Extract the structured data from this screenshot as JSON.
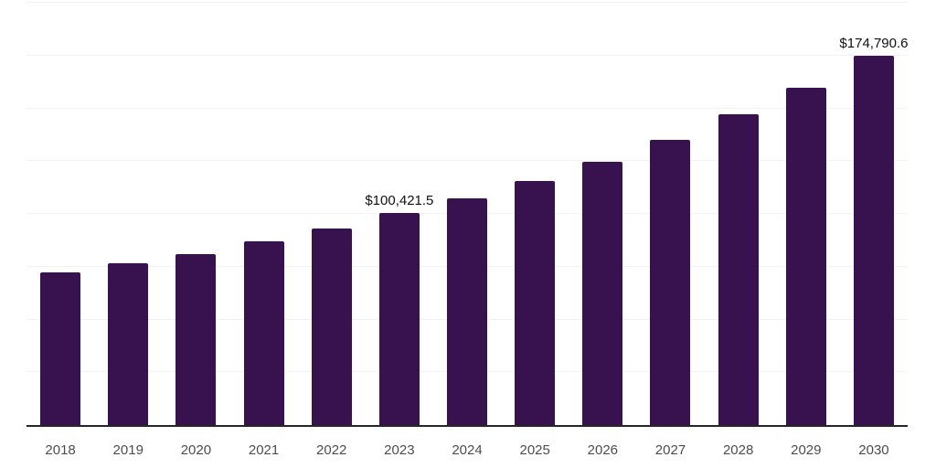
{
  "chart_data": {
    "type": "bar",
    "title": "",
    "xlabel": "",
    "ylabel": "",
    "categories": [
      "2018",
      "2019",
      "2020",
      "2021",
      "2022",
      "2023",
      "2024",
      "2025",
      "2026",
      "2027",
      "2028",
      "2029",
      "2030"
    ],
    "values": [
      72200,
      76800,
      81000,
      87000,
      93200,
      100421.5,
      107400,
      115800,
      124800,
      135100,
      147000,
      159900,
      174790.6
    ],
    "bar_labels": [
      "",
      "",
      "",
      "",
      "",
      "$100,421.5",
      "",
      "",
      "",
      "",
      "",
      "",
      "$174,790.6"
    ],
    "ylim": [
      0,
      200000
    ],
    "grid_step": 25000,
    "grid": true,
    "legend": "none",
    "colors": {
      "bar": "#38114f",
      "grid": "#f2f2f2",
      "axis": "#262626",
      "tick_label": "#4d4d4d",
      "data_label": "#111111",
      "background": "#ffffff"
    }
  }
}
